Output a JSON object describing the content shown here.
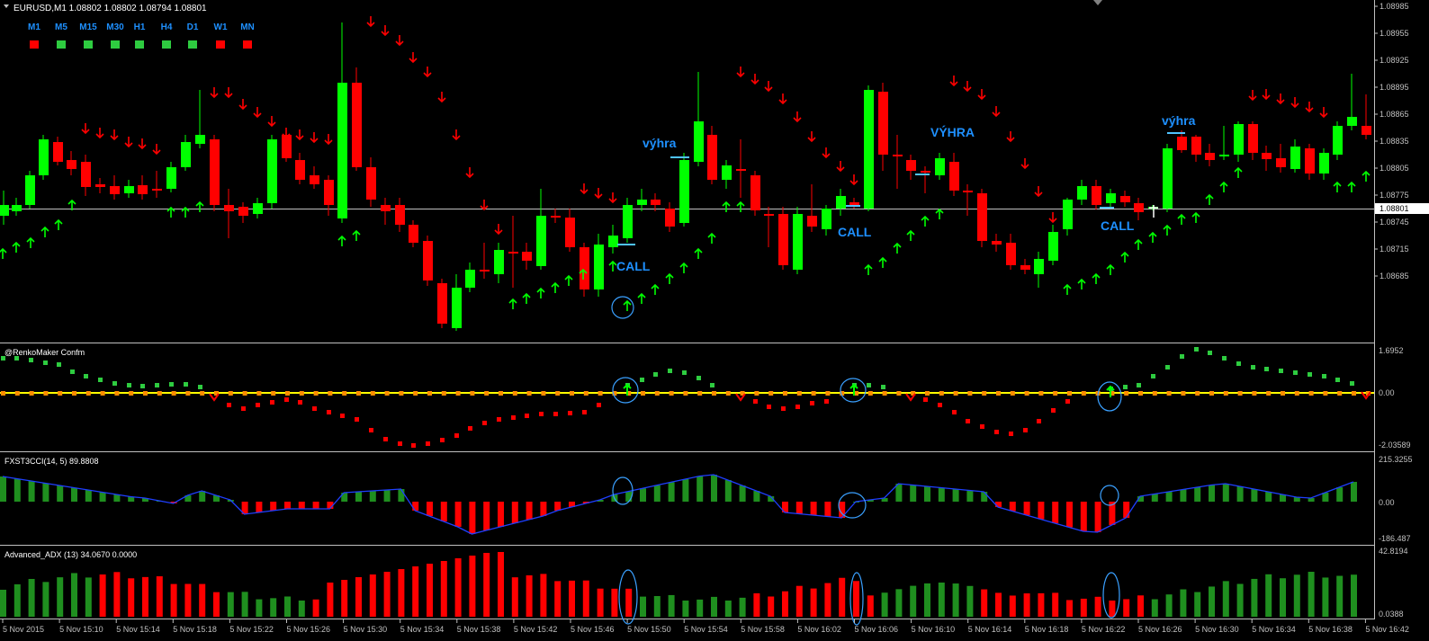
{
  "header": {
    "symbol_line": "EURUSD,M1  1.08802 1.08802 1.08794 1.08801",
    "timeframes": [
      {
        "label": "M1",
        "state": "red"
      },
      {
        "label": "M5",
        "state": "green"
      },
      {
        "label": "M15",
        "state": "green"
      },
      {
        "label": "M30",
        "state": "green"
      },
      {
        "label": "H1",
        "state": "green"
      },
      {
        "label": "H4",
        "state": "green"
      },
      {
        "label": "D1",
        "state": "green"
      },
      {
        "label": "W1",
        "state": "red"
      },
      {
        "label": "MN",
        "state": "red"
      }
    ]
  },
  "price_axis": {
    "ticks": [
      "1.08985",
      "1.08955",
      "1.08925",
      "1.08895",
      "1.08865",
      "1.08835",
      "1.08805",
      "1.08775",
      "1.08745",
      "1.08715",
      "1.08685"
    ],
    "current": "1.08801"
  },
  "annotations": {
    "call": [
      "CALL",
      "CALL",
      "CALL"
    ],
    "win": [
      "výhra",
      "VÝHRA",
      "výhra"
    ]
  },
  "indicators": {
    "renko": {
      "title": "@RenkoMaker Confm",
      "ticks": [
        "1.6952",
        "0.00",
        "-2.03589"
      ]
    },
    "cci": {
      "title": "FXST3CCI(14, 5) 89.8808",
      "ticks": [
        "215.3255",
        "0.00",
        "-186.487"
      ]
    },
    "adx": {
      "title": "Advanced_ADX (13) 34.0670 0.0000",
      "ticks": [
        "42.8194",
        "0.0388"
      ]
    }
  },
  "time_axis": [
    "5 Nov 2015",
    "5 Nov 15:10",
    "5 Nov 15:14",
    "5 Nov 15:18",
    "5 Nov 15:22",
    "5 Nov 15:26",
    "5 Nov 15:30",
    "5 Nov 15:34",
    "5 Nov 15:38",
    "5 Nov 15:42",
    "5 Nov 15:46",
    "5 Nov 15:50",
    "5 Nov 15:54",
    "5 Nov 15:58",
    "5 Nov 16:02",
    "5 Nov 16:06",
    "5 Nov 16:10",
    "5 Nov 16:14",
    "5 Nov 16:18",
    "5 Nov 16:22",
    "5 Nov 16:26",
    "5 Nov 16:30",
    "5 Nov 16:34",
    "5 Nov 16:38",
    "5 Nov 16:42"
  ],
  "colors": {
    "bull": "#00ff00",
    "bear": "#ff0000",
    "axis": "#c0c0c0",
    "label_blue": "#1e90ff",
    "orange": "#ff8c00",
    "yellow": "#ffff00"
  }
}
